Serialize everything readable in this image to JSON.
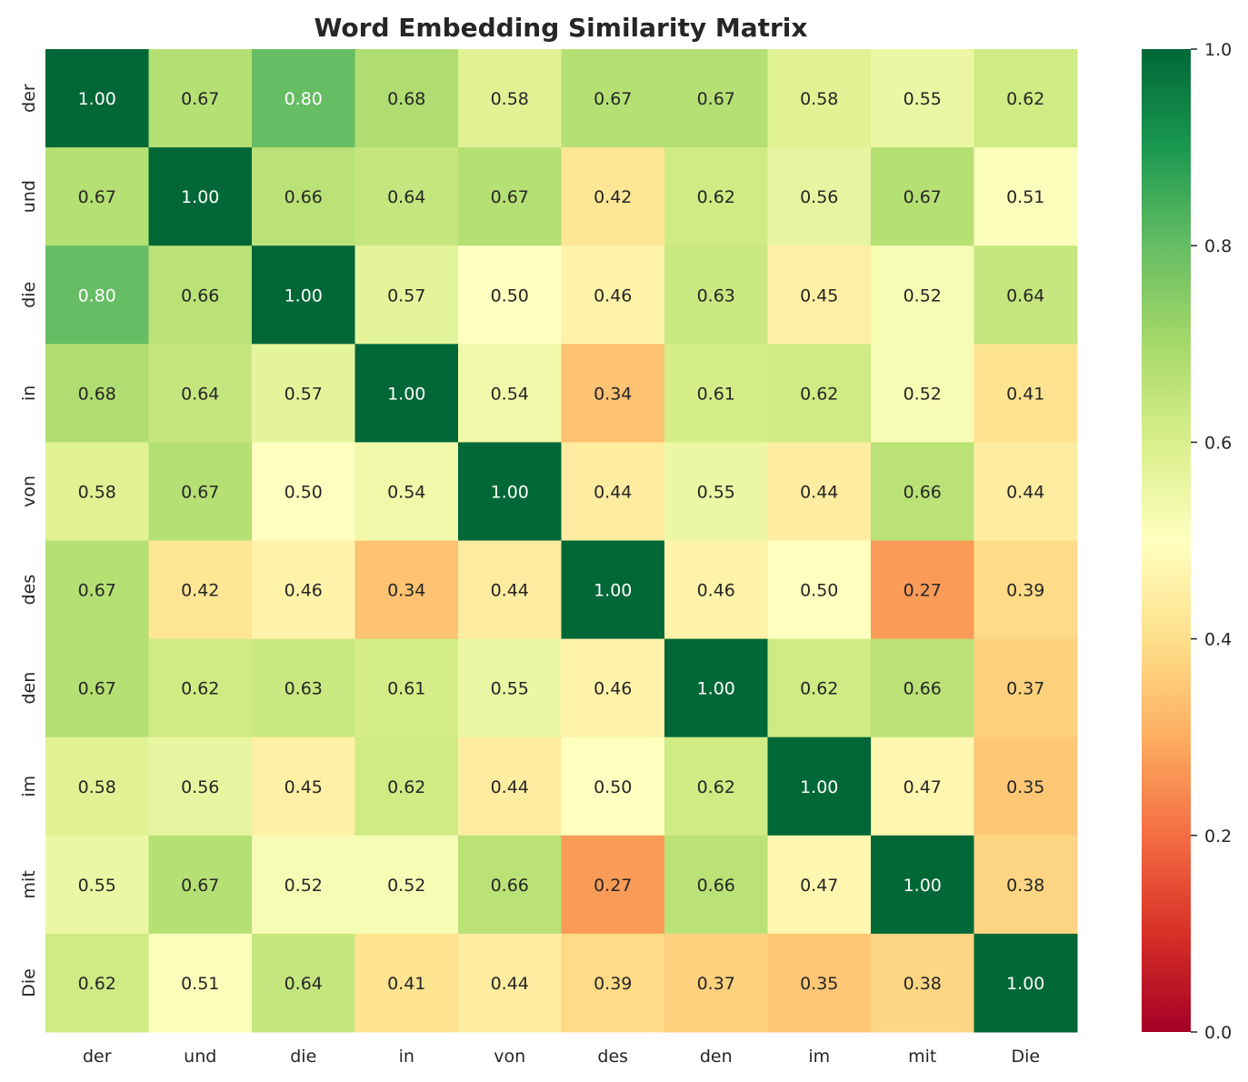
{
  "chart_data": {
    "type": "heatmap",
    "title": "Word Embedding Similarity Matrix",
    "x_labels": [
      "der",
      "und",
      "die",
      "in",
      "von",
      "des",
      "den",
      "im",
      "mit",
      "Die"
    ],
    "y_labels": [
      "der",
      "und",
      "die",
      "in",
      "von",
      "des",
      "den",
      "im",
      "mit",
      "Die"
    ],
    "values": [
      [
        1.0,
        0.67,
        0.8,
        0.68,
        0.58,
        0.67,
        0.67,
        0.58,
        0.55,
        0.62
      ],
      [
        0.67,
        1.0,
        0.66,
        0.64,
        0.67,
        0.42,
        0.62,
        0.56,
        0.67,
        0.51
      ],
      [
        0.8,
        0.66,
        1.0,
        0.57,
        0.5,
        0.46,
        0.63,
        0.45,
        0.52,
        0.64
      ],
      [
        0.68,
        0.64,
        0.57,
        1.0,
        0.54,
        0.34,
        0.61,
        0.62,
        0.52,
        0.41
      ],
      [
        0.58,
        0.67,
        0.5,
        0.54,
        1.0,
        0.44,
        0.55,
        0.44,
        0.66,
        0.44
      ],
      [
        0.67,
        0.42,
        0.46,
        0.34,
        0.44,
        1.0,
        0.46,
        0.5,
        0.27,
        0.39
      ],
      [
        0.67,
        0.62,
        0.63,
        0.61,
        0.55,
        0.46,
        1.0,
        0.62,
        0.66,
        0.37
      ],
      [
        0.58,
        0.56,
        0.45,
        0.62,
        0.44,
        0.5,
        0.62,
        1.0,
        0.47,
        0.35
      ],
      [
        0.55,
        0.67,
        0.52,
        0.52,
        0.66,
        0.27,
        0.66,
        0.47,
        1.0,
        0.38
      ],
      [
        0.62,
        0.51,
        0.64,
        0.41,
        0.44,
        0.39,
        0.37,
        0.35,
        0.38,
        1.0
      ]
    ],
    "annotation_format": "0.00",
    "colormap": "RdYlGn",
    "colormap_stops": [
      "#a50026",
      "#d73027",
      "#f46d43",
      "#fdae61",
      "#fee08b",
      "#ffffbf",
      "#d9ef8b",
      "#a6d96a",
      "#66bd63",
      "#1a9850",
      "#006837"
    ],
    "vmin": 0.0,
    "vmax": 1.0,
    "colorbar_ticks": [
      "0.0",
      "0.2",
      "0.4",
      "0.6",
      "0.8",
      "1.0"
    ],
    "colorbar_placement": "right",
    "grid": false
  }
}
